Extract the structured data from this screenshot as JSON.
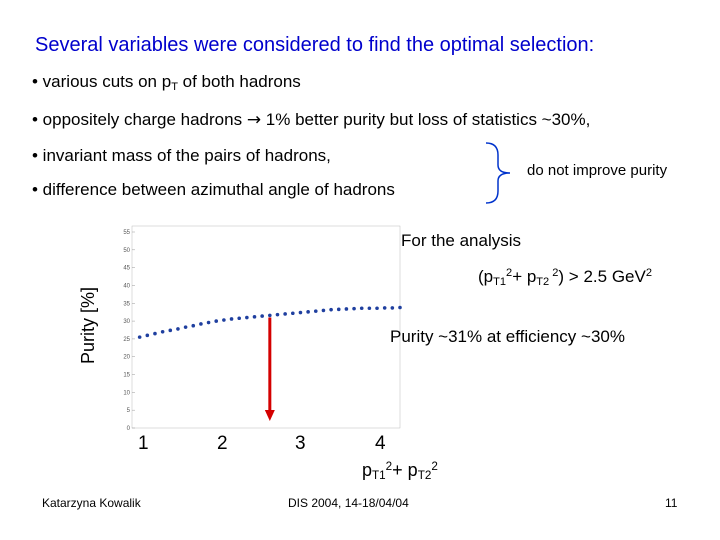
{
  "title": "Several variables were considered  to find the optimal selection:",
  "bullets": {
    "b1_text": "• various cuts on  p",
    "b1_sub": "T",
    "b1_tail": " of both hadrons",
    "b2_lead": "• oppositely  charge  hadrons ",
    "b2_arrow": "→",
    "b2_tail": " 1% better purity but loss of statistics ~30%,",
    "b3": "• invariant mass of the pairs of hadrons,",
    "b4": "• difference between  azimuthal angle of  hadrons"
  },
  "brace_note": "do not improve purity",
  "right_text": {
    "for_analysis": "For the analysis",
    "cut_open": "(p",
    "cut_sub1": "T1",
    "cut_sup1": "2",
    "cut_plus": "+ p",
    "cut_sub2": "T2",
    "cut_sup2": " 2",
    "cut_close": ") > 2.5 GeV",
    "cut_sup3": "2",
    "purity": "Purity ~31% at efficiency  ~30%"
  },
  "chart_data": {
    "type": "scatter",
    "ylabel": "Purity [%]",
    "ylim": [
      0,
      55
    ],
    "y_ticks": [
      "55",
      "50",
      "45",
      "40",
      "35",
      "30",
      "25",
      "20",
      "15",
      "10",
      "5",
      "0"
    ],
    "x_ticks": [
      "1",
      "2",
      "3",
      "4"
    ],
    "xlim": [
      0.7,
      4.2
    ],
    "x": [
      0.8,
      0.9,
      1.0,
      1.1,
      1.2,
      1.3,
      1.4,
      1.5,
      1.6,
      1.7,
      1.8,
      1.9,
      2.0,
      2.1,
      2.2,
      2.3,
      2.4,
      2.5,
      2.6,
      2.7,
      2.8,
      2.9,
      3.0,
      3.1,
      3.2,
      3.3,
      3.4,
      3.5,
      3.6,
      3.7,
      3.8,
      3.9,
      4.0,
      4.1,
      4.2
    ],
    "y": [
      25.5,
      26.0,
      26.5,
      27.0,
      27.4,
      27.8,
      28.3,
      28.7,
      29.2,
      29.6,
      30.0,
      30.3,
      30.6,
      30.8,
      31.0,
      31.2,
      31.4,
      31.6,
      31.8,
      32.0,
      32.2,
      32.4,
      32.6,
      32.8,
      33.0,
      33.2,
      33.3,
      33.4,
      33.5,
      33.6,
      33.6,
      33.6,
      33.7,
      33.7,
      33.8
    ],
    "cut_marker_x": 2.5,
    "grid": false,
    "xlabel_base": "p",
    "xlabel_sub1": "T1",
    "xlabel_sup1": "2",
    "xlabel_mid": "+ p",
    "xlabel_sub2": "T2",
    "xlabel_sup2": "2",
    "colors": {
      "points": "#1f3f9f",
      "marker": "#d40000",
      "axis": "#555555"
    }
  },
  "footer": {
    "author": "Katarzyna Kowalik",
    "conference": "DIS 2004,  14-18/04/04",
    "page": "11"
  },
  "colors": {
    "title": "#0000cc"
  }
}
